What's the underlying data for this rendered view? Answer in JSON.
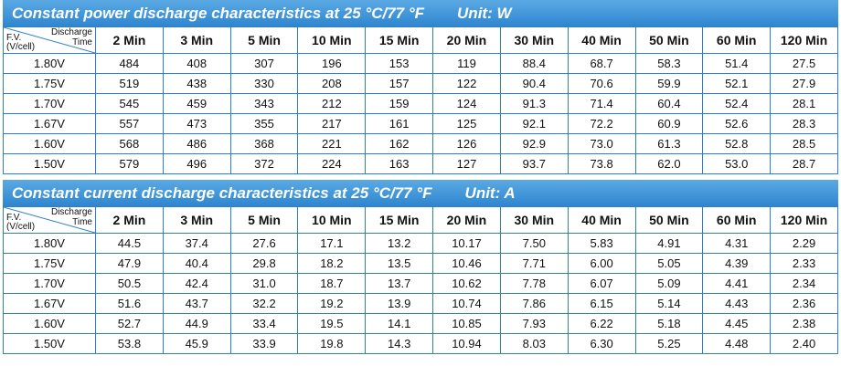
{
  "header": {
    "discharge": "Discharge",
    "time": "Time",
    "fv": "F.V.",
    "vcell": "(V/cell)",
    "columns": [
      "2 Min",
      "3 Min",
      "5 Min",
      "10 Min",
      "15 Min",
      "20 Min",
      "30 Min",
      "40 Min",
      "50 Min",
      "60 Min",
      "120 Min"
    ]
  },
  "power": {
    "title": "Constant power discharge characteristics at 25 °C/77 °F",
    "unit": "Unit: W",
    "rows": [
      {
        "fv": "1.80V",
        "values": [
          "484",
          "408",
          "307",
          "196",
          "153",
          "119",
          "88.4",
          "68.7",
          "58.3",
          "51.4",
          "27.5"
        ]
      },
      {
        "fv": "1.75V",
        "values": [
          "519",
          "438",
          "330",
          "208",
          "157",
          "122",
          "90.4",
          "70.6",
          "59.9",
          "52.1",
          "27.9"
        ]
      },
      {
        "fv": "1.70V",
        "values": [
          "545",
          "459",
          "343",
          "212",
          "159",
          "124",
          "91.3",
          "71.4",
          "60.4",
          "52.4",
          "28.1"
        ]
      },
      {
        "fv": "1.67V",
        "values": [
          "557",
          "473",
          "355",
          "217",
          "161",
          "125",
          "92.1",
          "72.2",
          "60.9",
          "52.6",
          "28.3"
        ]
      },
      {
        "fv": "1.60V",
        "values": [
          "568",
          "486",
          "368",
          "221",
          "162",
          "126",
          "92.9",
          "73.0",
          "61.3",
          "52.8",
          "28.5"
        ]
      },
      {
        "fv": "1.50V",
        "values": [
          "579",
          "496",
          "372",
          "224",
          "163",
          "127",
          "93.7",
          "73.8",
          "62.0",
          "53.0",
          "28.7"
        ]
      }
    ]
  },
  "current": {
    "title": "Constant current discharge characteristics at 25 °C/77 °F",
    "unit": "Unit: A",
    "rows": [
      {
        "fv": "1.80V",
        "values": [
          "44.5",
          "37.4",
          "27.6",
          "17.1",
          "13.2",
          "10.17",
          "7.50",
          "5.83",
          "4.91",
          "4.31",
          "2.29"
        ]
      },
      {
        "fv": "1.75V",
        "values": [
          "47.9",
          "40.4",
          "29.8",
          "18.2",
          "13.5",
          "10.46",
          "7.71",
          "6.00",
          "5.05",
          "4.39",
          "2.33"
        ]
      },
      {
        "fv": "1.70V",
        "values": [
          "50.5",
          "42.4",
          "31.0",
          "18.7",
          "13.7",
          "10.62",
          "7.78",
          "6.07",
          "5.09",
          "4.41",
          "2.34"
        ]
      },
      {
        "fv": "1.67V",
        "values": [
          "51.6",
          "43.7",
          "32.2",
          "19.2",
          "13.9",
          "10.74",
          "7.86",
          "6.15",
          "5.14",
          "4.43",
          "2.36"
        ]
      },
      {
        "fv": "1.60V",
        "values": [
          "52.7",
          "44.9",
          "33.4",
          "19.5",
          "14.1",
          "10.85",
          "7.93",
          "6.22",
          "5.18",
          "4.45",
          "2.38"
        ]
      },
      {
        "fv": "1.50V",
        "values": [
          "53.8",
          "45.9",
          "33.9",
          "19.8",
          "14.3",
          "10.94",
          "8.03",
          "6.30",
          "5.25",
          "4.48",
          "2.40"
        ]
      }
    ]
  }
}
